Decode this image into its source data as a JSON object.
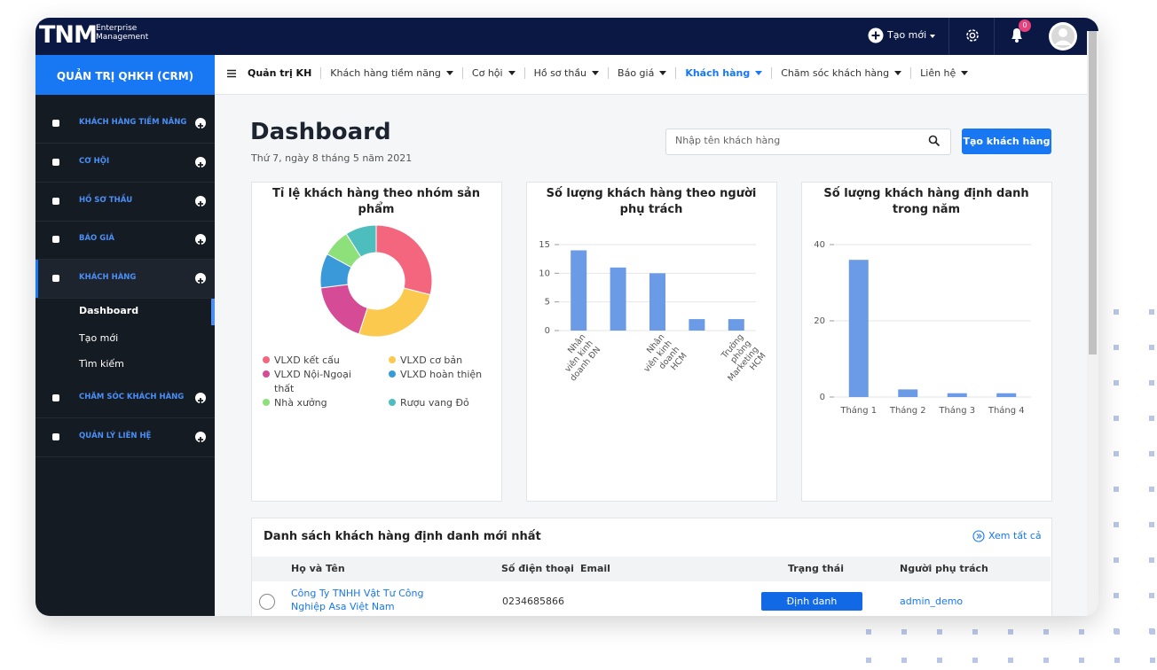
{
  "brand": {
    "logo": "TNM",
    "line1": "Enterprise",
    "line2": "Management"
  },
  "topbar": {
    "create": "Tạo mới",
    "badge": "0"
  },
  "sidebar": {
    "title": "QUẢN TRỊ QHKH (CRM)",
    "items": [
      "KHÁCH HÀNG TIỀM NĂNG",
      "CƠ HỘI",
      "HỒ SƠ THẦU",
      "BÁO GIÁ",
      "KHÁCH HÀNG",
      "CHĂM SÓC KHÁCH HÀNG",
      "QUẢN LÝ LIÊN HỆ"
    ],
    "active": 4,
    "subitems": [
      "Dashboard",
      "Tạo mới",
      "Tìm kiếm"
    ],
    "active_sub": 0
  },
  "nav": {
    "items": [
      "Quản trị KH",
      "Khách hàng tiềm năng",
      "Cơ hội",
      "Hồ sơ thầu",
      "Báo giá",
      "Khách hàng",
      "Chăm sóc khách hàng",
      "Liên hệ"
    ],
    "active": 5
  },
  "header": {
    "title": "Dashboard",
    "date": "Thứ 7, ngày 8 tháng 5 năm 2021",
    "search_placeholder": "Nhập tên khách hàng",
    "button": "Tạo khách hàng"
  },
  "chart_data": [
    {
      "type": "donut",
      "title": "Tỉ lệ khách hàng theo nhóm sản phẩm",
      "categories": [
        "VLXD kết cấu",
        "VLXD cơ bản",
        "VLXD Nội-Ngoại thất",
        "VLXD hoàn thiện",
        "Nhà xưởng",
        "Rượu vang Đỏ"
      ],
      "values": [
        29,
        26,
        18,
        10,
        8,
        9
      ],
      "colors": [
        "#f4667e",
        "#fbc94e",
        "#d64b95",
        "#3a9ad9",
        "#8ee07a",
        "#4dbdbd"
      ]
    },
    {
      "type": "bar",
      "title": "Số lượng khách hàng theo người phụ trách",
      "categories": [
        "Nhân viên kinh doanh ĐN",
        null,
        "Nhân viên kinh doanh HCM",
        null,
        "Trưởng phòng Marketing HCM"
      ],
      "values": [
        14,
        11,
        10,
        2,
        2
      ],
      "color": "#6b9be6",
      "ylim": [
        0,
        15
      ],
      "yticks": [
        0,
        5,
        10,
        15
      ],
      "grid": true
    },
    {
      "type": "bar",
      "title": "Số lượng khách hàng định danh trong năm",
      "categories": [
        "Tháng 1",
        "Tháng 2",
        "Tháng 3",
        "Tháng 4"
      ],
      "values": [
        36,
        2,
        1,
        1
      ],
      "color": "#6b9be6",
      "ylim": [
        0,
        40
      ],
      "yticks": [
        0,
        20,
        40
      ],
      "grid": true
    }
  ],
  "table": {
    "title": "Danh sách khách hàng định danh mới nhất",
    "link": "Xem tất cả",
    "columns": [
      "Họ và Tên",
      "Số điện thoại",
      "Email",
      "Trạng thái",
      "Người phụ trách"
    ],
    "rows": [
      {
        "name": "Công Ty TNHH Vật Tư Công Nghiệp Asa Việt Nam",
        "phone": "0234685866",
        "status": "Định danh",
        "owner": "admin_demo"
      }
    ]
  }
}
